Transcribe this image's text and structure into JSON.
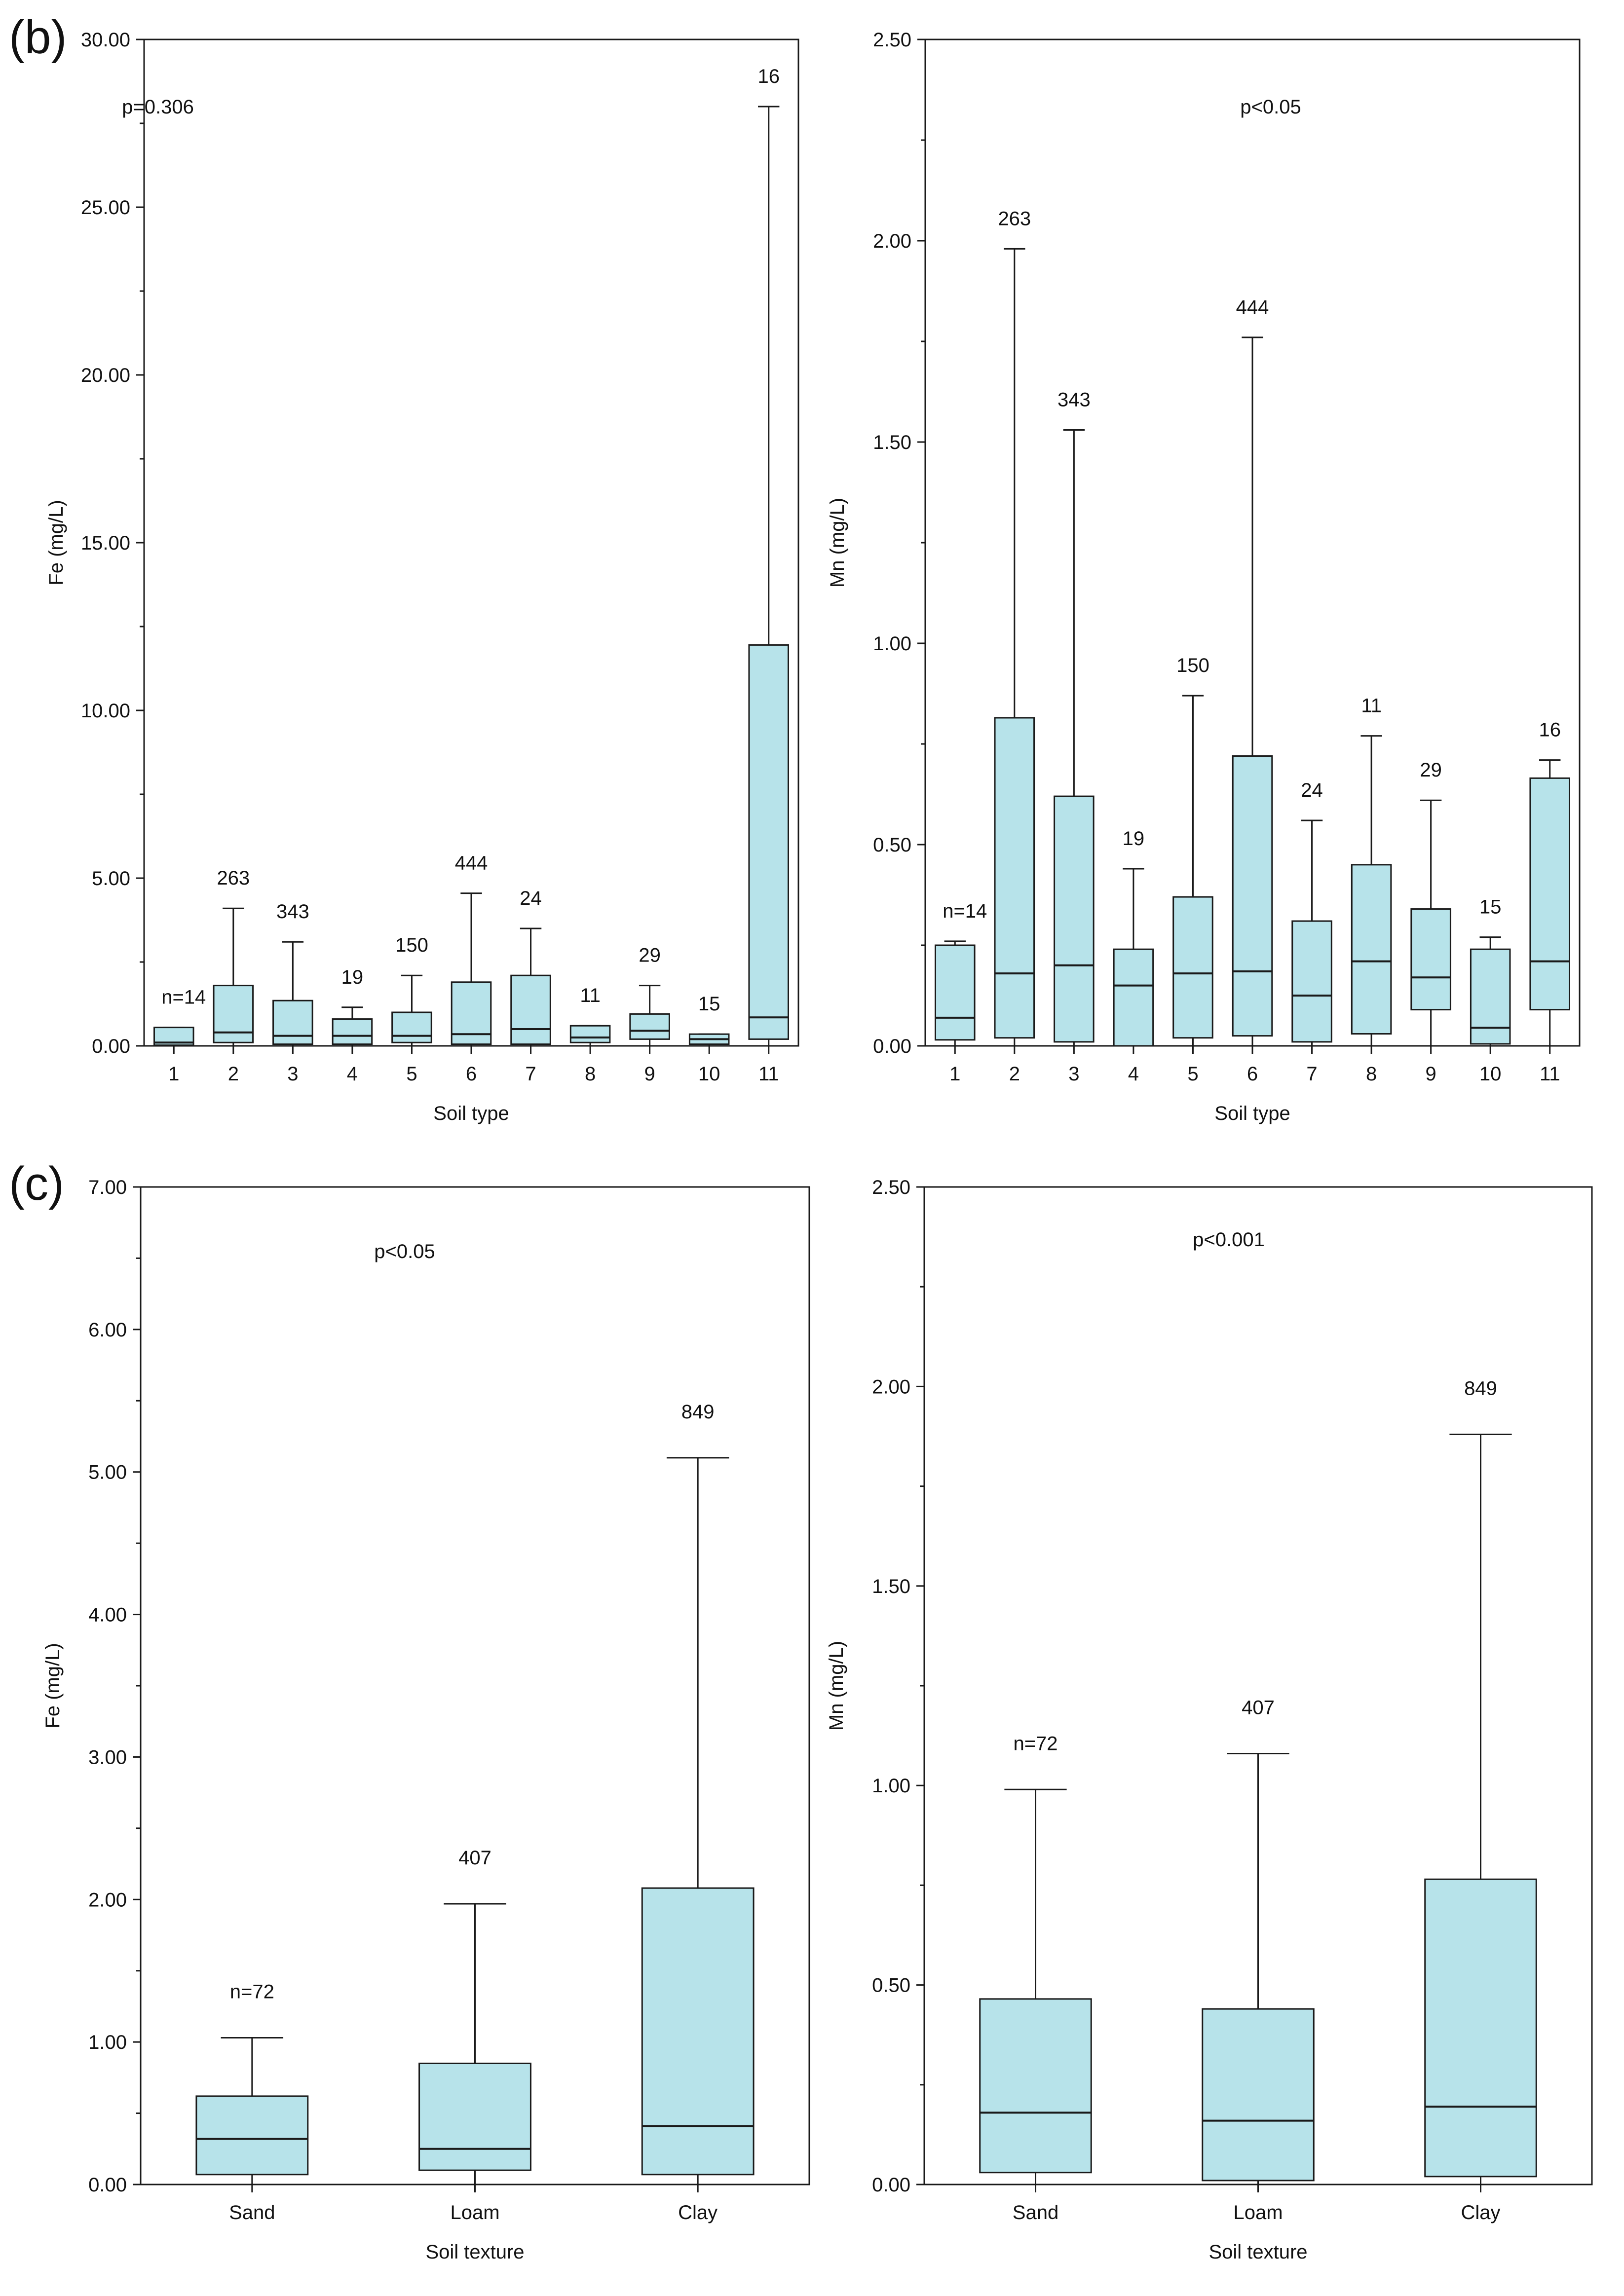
{
  "figure": {
    "panel_b_label": "(b)",
    "panel_c_label": "(c)"
  },
  "colors": {
    "box_fill": "#b7e3ea",
    "stroke": "#1a1a1a",
    "text": "#111111"
  },
  "chart_data": [
    {
      "type": "box",
      "panel": "(b)",
      "title": "",
      "annotation": "p=0.306",
      "xlabel": "Soil type",
      "ylabel": "Fe (mg/L)",
      "ylim": [
        0,
        30
      ],
      "yticks": [
        "0.00",
        "5.00",
        "10.00",
        "15.00",
        "20.00",
        "25.00",
        "30.00"
      ],
      "categories": [
        "1",
        "2",
        "3",
        "4",
        "5",
        "6",
        "7",
        "8",
        "9",
        "10",
        "11"
      ],
      "n_labels": [
        "n=14",
        "263",
        "343",
        "19",
        "150",
        "444",
        "24",
        "11",
        "29",
        "15",
        "16"
      ],
      "boxes": [
        {
          "min": 0.0,
          "q1": 0.02,
          "median": 0.1,
          "q3": 0.55,
          "max": 0.55
        },
        {
          "min": 0.0,
          "q1": 0.1,
          "median": 0.4,
          "q3": 1.8,
          "max": 4.1
        },
        {
          "min": 0.0,
          "q1": 0.05,
          "median": 0.3,
          "q3": 1.35,
          "max": 3.1
        },
        {
          "min": 0.0,
          "q1": 0.05,
          "median": 0.3,
          "q3": 0.8,
          "max": 1.15
        },
        {
          "min": 0.0,
          "q1": 0.1,
          "median": 0.3,
          "q3": 1.0,
          "max": 2.1
        },
        {
          "min": 0.0,
          "q1": 0.05,
          "median": 0.35,
          "q3": 1.9,
          "max": 4.55
        },
        {
          "min": 0.0,
          "q1": 0.05,
          "median": 0.5,
          "q3": 2.1,
          "max": 3.5
        },
        {
          "min": 0.0,
          "q1": 0.1,
          "median": 0.25,
          "q3": 0.6,
          "max": 0.6
        },
        {
          "min": 0.0,
          "q1": 0.2,
          "median": 0.45,
          "q3": 0.95,
          "max": 1.8
        },
        {
          "min": 0.0,
          "q1": 0.05,
          "median": 0.2,
          "q3": 0.35,
          "max": 0.35
        },
        {
          "min": 0.0,
          "q1": 0.2,
          "median": 0.85,
          "q3": 11.95,
          "max": 28.0
        }
      ]
    },
    {
      "type": "box",
      "panel": "(b)",
      "title": "",
      "annotation": "p<0.05",
      "xlabel": "Soil type",
      "ylabel": "Mn (mg/L)",
      "ylim": [
        0,
        2.5
      ],
      "yticks": [
        "0.00",
        "0.50",
        "1.00",
        "1.50",
        "2.00",
        "2.50"
      ],
      "categories": [
        "1",
        "2",
        "3",
        "4",
        "5",
        "6",
        "7",
        "8",
        "9",
        "10",
        "11"
      ],
      "n_labels": [
        "n=14",
        "263",
        "343",
        "19",
        "150",
        "444",
        "24",
        "11",
        "29",
        "15",
        "16"
      ],
      "boxes": [
        {
          "min": 0.0,
          "q1": 0.015,
          "median": 0.07,
          "q3": 0.25,
          "max": 0.26
        },
        {
          "min": 0.0,
          "q1": 0.02,
          "median": 0.18,
          "q3": 0.815,
          "max": 1.98
        },
        {
          "min": 0.0,
          "q1": 0.01,
          "median": 0.2,
          "q3": 0.62,
          "max": 1.53
        },
        {
          "min": 0.0,
          "q1": 0.0,
          "median": 0.15,
          "q3": 0.24,
          "max": 0.44
        },
        {
          "min": 0.0,
          "q1": 0.02,
          "median": 0.18,
          "q3": 0.37,
          "max": 0.87
        },
        {
          "min": 0.0,
          "q1": 0.025,
          "median": 0.185,
          "q3": 0.72,
          "max": 1.76
        },
        {
          "min": 0.0,
          "q1": 0.01,
          "median": 0.125,
          "q3": 0.31,
          "max": 0.56
        },
        {
          "min": 0.0,
          "q1": 0.03,
          "median": 0.21,
          "q3": 0.45,
          "max": 0.77
        },
        {
          "min": 0.0,
          "q1": 0.09,
          "median": 0.17,
          "q3": 0.34,
          "max": 0.61
        },
        {
          "min": 0.0,
          "q1": 0.005,
          "median": 0.045,
          "q3": 0.24,
          "max": 0.27
        },
        {
          "min": 0.0,
          "q1": 0.09,
          "median": 0.21,
          "q3": 0.665,
          "max": 0.71
        }
      ]
    },
    {
      "type": "box",
      "panel": "(c)",
      "title": "",
      "annotation": "p<0.05",
      "xlabel": "Soil texture",
      "ylabel": "Fe (mg/L)",
      "ylim": [
        0,
        7
      ],
      "yticks": [
        "0.00",
        "1.00",
        "2.00",
        "3.00",
        "4.00",
        "5.00",
        "6.00",
        "7.00"
      ],
      "categories": [
        "Sand",
        "Loam",
        "Clay"
      ],
      "n_labels": [
        "n=72",
        "407",
        "849"
      ],
      "boxes": [
        {
          "min": 0.0,
          "q1": 0.07,
          "median": 0.32,
          "q3": 0.62,
          "max": 1.03
        },
        {
          "min": 0.0,
          "q1": 0.1,
          "median": 0.25,
          "q3": 0.85,
          "max": 1.97
        },
        {
          "min": 0.0,
          "q1": 0.07,
          "median": 0.41,
          "q3": 2.08,
          "max": 5.1
        }
      ]
    },
    {
      "type": "box",
      "panel": "(c)",
      "title": "",
      "annotation": "p<0.001",
      "xlabel": "Soil texture",
      "ylabel": "Mn (mg/L)",
      "ylim": [
        0,
        2.5
      ],
      "yticks": [
        "0.00",
        "0.50",
        "1.00",
        "1.50",
        "2.00",
        "2.50"
      ],
      "categories": [
        "Sand",
        "Loam",
        "Clay"
      ],
      "n_labels": [
        "n=72",
        "407",
        "849"
      ],
      "boxes": [
        {
          "min": 0.0,
          "q1": 0.03,
          "median": 0.18,
          "q3": 0.465,
          "max": 0.99
        },
        {
          "min": 0.0,
          "q1": 0.01,
          "median": 0.16,
          "q3": 0.44,
          "max": 1.08
        },
        {
          "min": 0.0,
          "q1": 0.02,
          "median": 0.195,
          "q3": 0.765,
          "max": 1.88
        }
      ]
    }
  ]
}
